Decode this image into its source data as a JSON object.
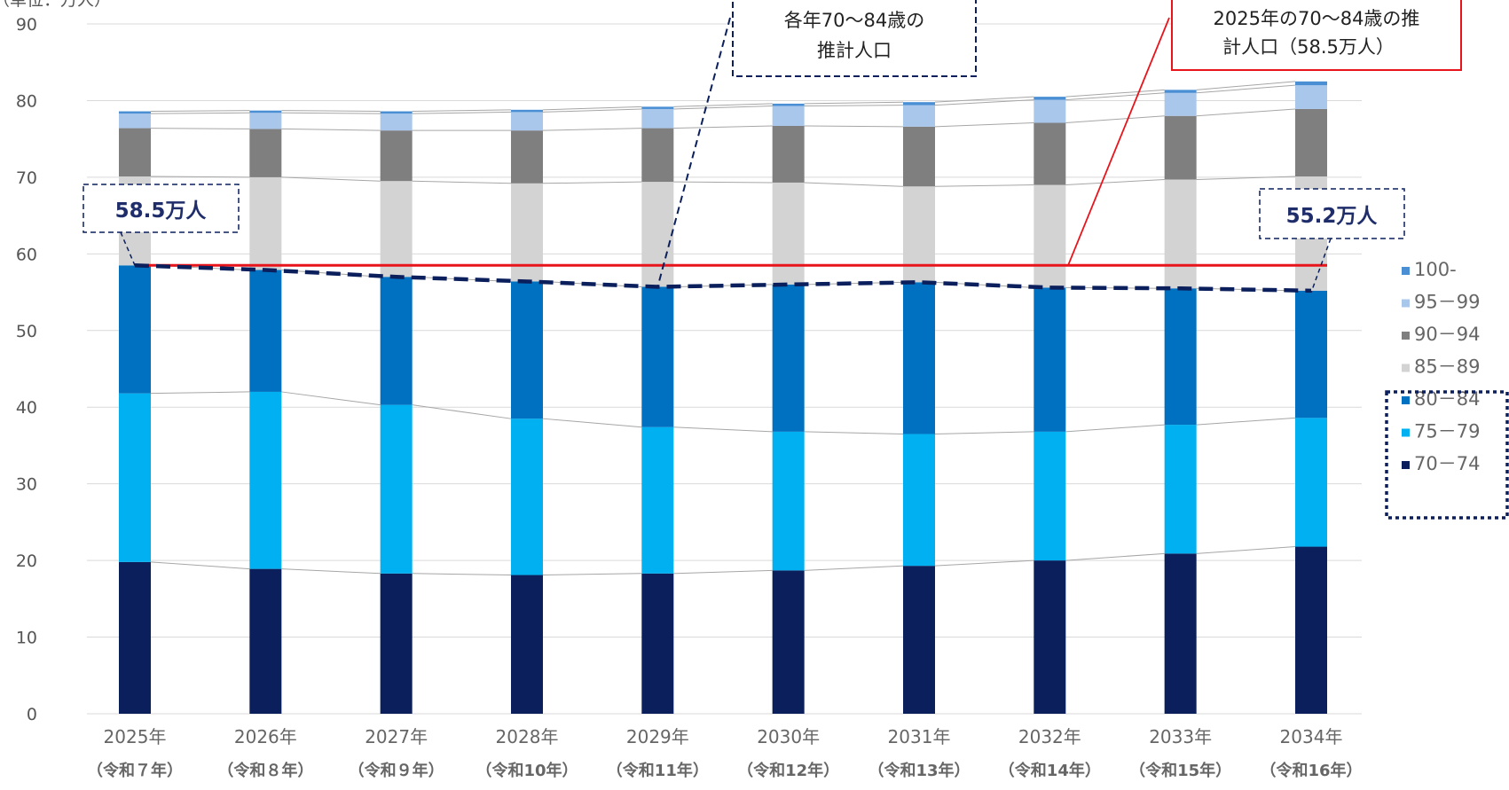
{
  "chart_data": {
    "type": "bar",
    "stacked": true,
    "y_unit_label": "（単位：万人）",
    "ylim": [
      0,
      90
    ],
    "y_ticks": [
      0,
      10,
      20,
      30,
      40,
      50,
      60,
      70,
      80,
      90
    ],
    "grid": true,
    "legend_position": "right",
    "categories": [
      "2025年",
      "2026年",
      "2027年",
      "2028年",
      "2029年",
      "2030年",
      "2031年",
      "2032年",
      "2033年",
      "2034年"
    ],
    "category_sub": [
      "（令和７年）",
      "（令和８年）",
      "（令和９年）",
      "（令和10年）",
      "（令和11年）",
      "（令和12年）",
      "（令和13年）",
      "（令和14年）",
      "（令和15年）",
      "（令和16年）"
    ],
    "series": [
      {
        "name": "70－74",
        "color": "#0a1f5c",
        "values": [
          19.8,
          18.9,
          18.3,
          18.1,
          18.3,
          18.7,
          19.3,
          20.0,
          20.9,
          21.8
        ]
      },
      {
        "name": "75－79",
        "color": "#00b0f0",
        "values": [
          22.0,
          23.1,
          22.0,
          20.4,
          19.1,
          18.1,
          17.2,
          16.8,
          16.8,
          16.8
        ]
      },
      {
        "name": "80－84",
        "color": "#0070c0",
        "values": [
          16.7,
          15.9,
          16.7,
          17.9,
          18.3,
          19.2,
          19.8,
          18.8,
          17.8,
          16.6
        ]
      },
      {
        "name": "85－89",
        "color": "#d3d3d3",
        "values": [
          11.6,
          12.1,
          12.5,
          12.8,
          13.7,
          13.3,
          12.5,
          13.4,
          14.2,
          14.9
        ]
      },
      {
        "name": "90－94",
        "color": "#7f7f7f",
        "values": [
          6.3,
          6.3,
          6.6,
          6.9,
          7.0,
          7.4,
          7.8,
          8.1,
          8.3,
          8.8
        ]
      },
      {
        "name": "95－99",
        "color": "#a9c7eb",
        "values": [
          1.9,
          2.1,
          2.2,
          2.4,
          2.5,
          2.6,
          2.8,
          3.0,
          3.0,
          3.1
        ]
      },
      {
        "name": "100-",
        "color": "#4a8fd4",
        "values": [
          0.3,
          0.3,
          0.3,
          0.3,
          0.3,
          0.3,
          0.4,
          0.4,
          0.4,
          0.5
        ]
      }
    ],
    "legend_order": [
      "100-",
      "95－99",
      "90－94",
      "85－89",
      "80－84",
      "75－79",
      "70－74"
    ],
    "reference_line": {
      "value": 58.5,
      "color": "#e8141c"
    },
    "trend_line_values": [
      58.5,
      57.9,
      57.0,
      56.4,
      55.7,
      56.0,
      56.3,
      55.6,
      55.5,
      55.2
    ],
    "trend_color": "#0a1f5c",
    "annotations": {
      "callout_left": "58.5万人",
      "callout_right": "55.2万人",
      "callout_top_line1": "各年70～84歳の",
      "callout_top_line2": "推計人口",
      "callout_red_line1": "2025年の70～84歳の推",
      "callout_red_line2": "計人口（58.5万人）"
    }
  }
}
